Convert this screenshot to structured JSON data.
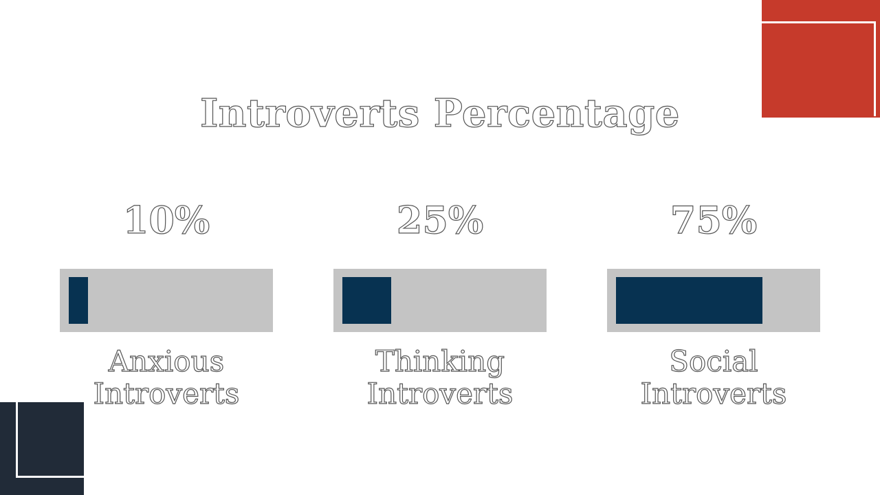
{
  "title": "Introverts Percentage",
  "colors": {
    "accent_red": "#c63a2b",
    "accent_dark": "#212b38",
    "bar_fill": "#073251",
    "bar_track": "#c4c4c4"
  },
  "stats": [
    {
      "percent_label": "10%",
      "fill_fraction": 0.1,
      "label_line1": "Anxious",
      "label_line2": "Introverts"
    },
    {
      "percent_label": "25%",
      "fill_fraction": 0.25,
      "label_line1": "Thinking",
      "label_line2": "Introverts"
    },
    {
      "percent_label": "75%",
      "fill_fraction": 0.75,
      "label_line1": "Social",
      "label_line2": "Introverts"
    }
  ]
}
